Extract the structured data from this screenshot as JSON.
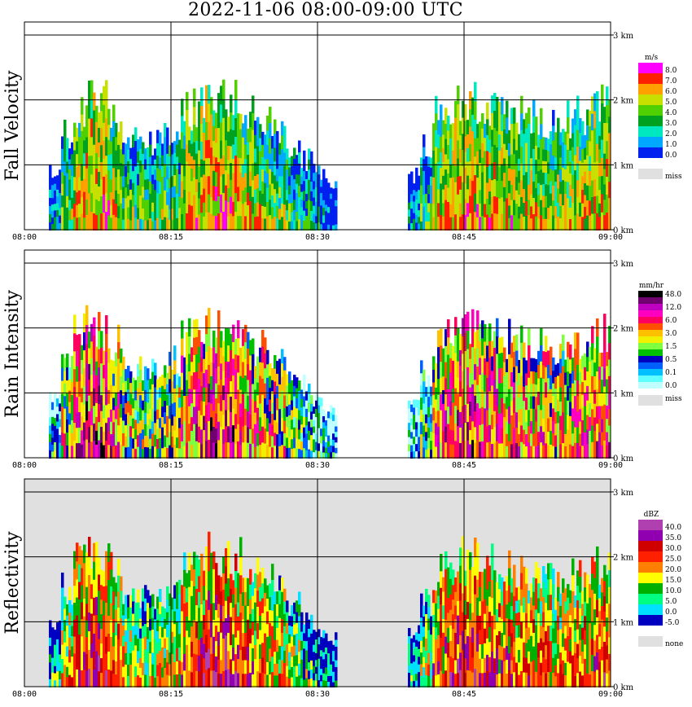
{
  "title": "2022-11-06   08:00-09:00 UTC",
  "chart_data": [
    {
      "type": "heatmap",
      "ylabel": "Fall Velocity",
      "x_ticks": [
        "08:00",
        "08:15",
        "08:30",
        "08:45",
        "09:00"
      ],
      "y_ticks": [
        "0 km",
        "1 km",
        "2 km",
        "3 km"
      ],
      "ylim_km": [
        0,
        3.2
      ],
      "grid": true,
      "legend": {
        "unit": "m/s",
        "levels": [
          {
            "label": "8.0",
            "color": "#ff00ff"
          },
          {
            "label": "7.0",
            "color": "#ff2000"
          },
          {
            "label": "6.0",
            "color": "#ffa000"
          },
          {
            "label": "5.0",
            "color": "#c8e000"
          },
          {
            "label": "4.0",
            "color": "#50d000"
          },
          {
            "label": "3.0",
            "color": "#00a020"
          },
          {
            "label": "2.0",
            "color": "#00e8c0"
          },
          {
            "label": "1.0",
            "color": "#00a8ff"
          },
          {
            "label": "0.0",
            "color": "#0020f0"
          },
          {
            "label": "miss",
            "color": "#e0e0e0"
          }
        ]
      }
    },
    {
      "type": "heatmap",
      "ylabel": "Rain Intensity",
      "x_ticks": [
        "08:00",
        "08:15",
        "08:30",
        "08:45",
        "09:00"
      ],
      "y_ticks": [
        "0 km",
        "1 km",
        "2 km",
        "3 km"
      ],
      "ylim_km": [
        0,
        3.2
      ],
      "grid": true,
      "legend": {
        "unit": "mm/hr",
        "levels": [
          {
            "label": "48.0",
            "color": "#000000"
          },
          {
            "label": "",
            "color": "#700070"
          },
          {
            "label": "12.0",
            "color": "#c000c0"
          },
          {
            "label": "",
            "color": "#ff00c0"
          },
          {
            "label": "6.0",
            "color": "#ff0060"
          },
          {
            "label": "",
            "color": "#ff5000"
          },
          {
            "label": "3.0",
            "color": "#ffc000"
          },
          {
            "label": "",
            "color": "#f0f000"
          },
          {
            "label": "1.5",
            "color": "#80ff40"
          },
          {
            "label": "",
            "color": "#00c000"
          },
          {
            "label": "0.5",
            "color": "#0000c0"
          },
          {
            "label": "",
            "color": "#0060ff"
          },
          {
            "label": "0.1",
            "color": "#00c0ff"
          },
          {
            "label": "",
            "color": "#60ffff"
          },
          {
            "label": "0.0",
            "color": "#c0ffff"
          },
          {
            "label": "miss",
            "color": "#e0e0e0"
          }
        ]
      }
    },
    {
      "type": "heatmap",
      "ylabel": "Reflectivity",
      "x_ticks": [
        "08:00",
        "08:15",
        "08:30",
        "08:45",
        "09:00"
      ],
      "y_ticks": [
        "0 km",
        "1 km",
        "2 km",
        "3 km"
      ],
      "ylim_km": [
        0,
        3.2
      ],
      "grid": true,
      "legend": {
        "unit": "dBZ",
        "levels": [
          {
            "label": "40.0",
            "color": "#b040b0"
          },
          {
            "label": "35.0",
            "color": "#9000b0"
          },
          {
            "label": "30.0",
            "color": "#d00000"
          },
          {
            "label": "25.0",
            "color": "#ff2000"
          },
          {
            "label": "20.0",
            "color": "#ff8000"
          },
          {
            "label": "15.0",
            "color": "#ffff00"
          },
          {
            "label": "10.0",
            "color": "#00b000"
          },
          {
            "label": "5.0",
            "color": "#00ff80"
          },
          {
            "label": "0.0",
            "color": "#00e0ff"
          },
          {
            "label": "-5.0",
            "color": "#0000c0"
          },
          {
            "label": "none",
            "color": "#e0e0e0"
          }
        ]
      }
    }
  ]
}
